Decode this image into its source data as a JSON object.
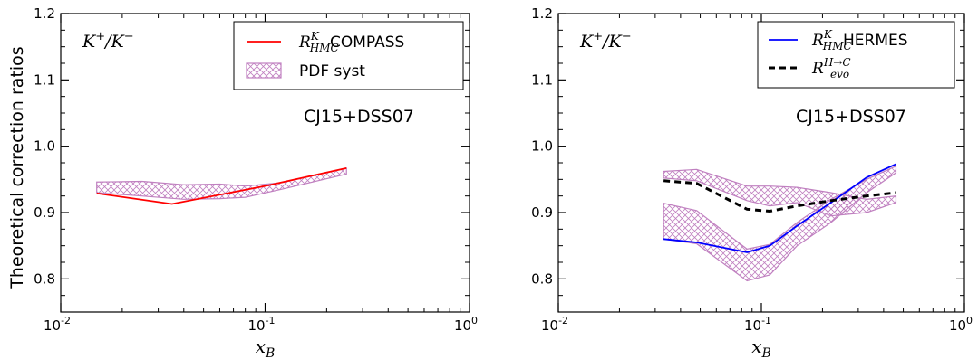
{
  "chart_data": [
    {
      "type": "line",
      "ylabel": "Theoretical correction ratios",
      "xlabel": "x_B",
      "xscale": "log",
      "xlim": [
        0.01,
        1
      ],
      "ylim": [
        0.75,
        1.2
      ],
      "xtick_labels": [
        "10-2",
        "10-1",
        "100"
      ],
      "ytick_values": [
        0.8,
        0.9,
        1.0,
        1.1,
        1.2
      ],
      "ytick_labels": [
        "0.8",
        "0.9",
        "1.0",
        "1.1",
        "1.2"
      ],
      "ratio_label": "K+/K−",
      "annotation": "CJ15+DSS07",
      "legend_placement": "top-right",
      "series": [
        {
          "name": "COMPASS",
          "symbol": "R",
          "sup": "K",
          "sub": "HMC",
          "style": "solid",
          "color": "#ff0000",
          "x": [
            0.015,
            0.035,
            0.1,
            0.25
          ],
          "y": [
            0.929,
            0.913,
            0.94,
            0.967
          ]
        }
      ],
      "bands": [
        {
          "name": "PDF syst",
          "color": "#c080c0",
          "x": [
            0.015,
            0.025,
            0.04,
            0.06,
            0.08,
            0.12,
            0.25
          ],
          "upper": [
            0.946,
            0.947,
            0.942,
            0.943,
            0.94,
            0.945,
            0.967
          ],
          "lower": [
            0.93,
            0.925,
            0.92,
            0.921,
            0.923,
            0.935,
            0.958
          ]
        }
      ]
    },
    {
      "type": "line",
      "xlabel": "x_B",
      "xscale": "log",
      "xlim": [
        0.01,
        1
      ],
      "ylim": [
        0.75,
        1.2
      ],
      "xtick_labels": [
        "10-2",
        "10-1",
        "100"
      ],
      "ytick_values": [
        0.8,
        0.9,
        1.0,
        1.1,
        1.2
      ],
      "ytick_labels": [
        "0.8",
        "0.9",
        "1.0",
        "1.1",
        "1.2"
      ],
      "ratio_label": "K+/K−",
      "annotation": "CJ15+DSS07",
      "legend_placement": "top-right",
      "series": [
        {
          "name": "HERMES",
          "symbol": "R",
          "sup": "K",
          "sub": "HMC",
          "style": "solid",
          "color": "#0000ff",
          "x": [
            0.033,
            0.048,
            0.085,
            0.11,
            0.15,
            0.22,
            0.33,
            0.46
          ],
          "y": [
            0.86,
            0.855,
            0.84,
            0.85,
            0.88,
            0.915,
            0.953,
            0.973
          ]
        },
        {
          "name": "",
          "symbol": "R",
          "sup": "H→C",
          "sub": "evo",
          "style": "dashed",
          "color": "#000000",
          "x": [
            0.033,
            0.048,
            0.085,
            0.11,
            0.15,
            0.22,
            0.33,
            0.46
          ],
          "y": [
            0.948,
            0.944,
            0.905,
            0.902,
            0.91,
            0.918,
            0.925,
            0.93
          ]
        }
      ],
      "bands": [
        {
          "name": "",
          "color": "#c080c0",
          "x": [
            0.033,
            0.048,
            0.085,
            0.11,
            0.15,
            0.22,
            0.33,
            0.46
          ],
          "upper": [
            0.962,
            0.965,
            0.94,
            0.94,
            0.938,
            0.93,
            0.92,
            0.925
          ],
          "lower": [
            0.952,
            0.948,
            0.918,
            0.91,
            0.915,
            0.895,
            0.9,
            0.915
          ]
        },
        {
          "name": "",
          "color": "#c080c0",
          "x": [
            0.033,
            0.048,
            0.085,
            0.11,
            0.15,
            0.22,
            0.33,
            0.46
          ],
          "upper": [
            0.914,
            0.903,
            0.845,
            0.852,
            0.885,
            0.92,
            0.95,
            0.97
          ],
          "lower": [
            0.86,
            0.853,
            0.797,
            0.806,
            0.85,
            0.885,
            0.93,
            0.96
          ]
        }
      ]
    }
  ]
}
